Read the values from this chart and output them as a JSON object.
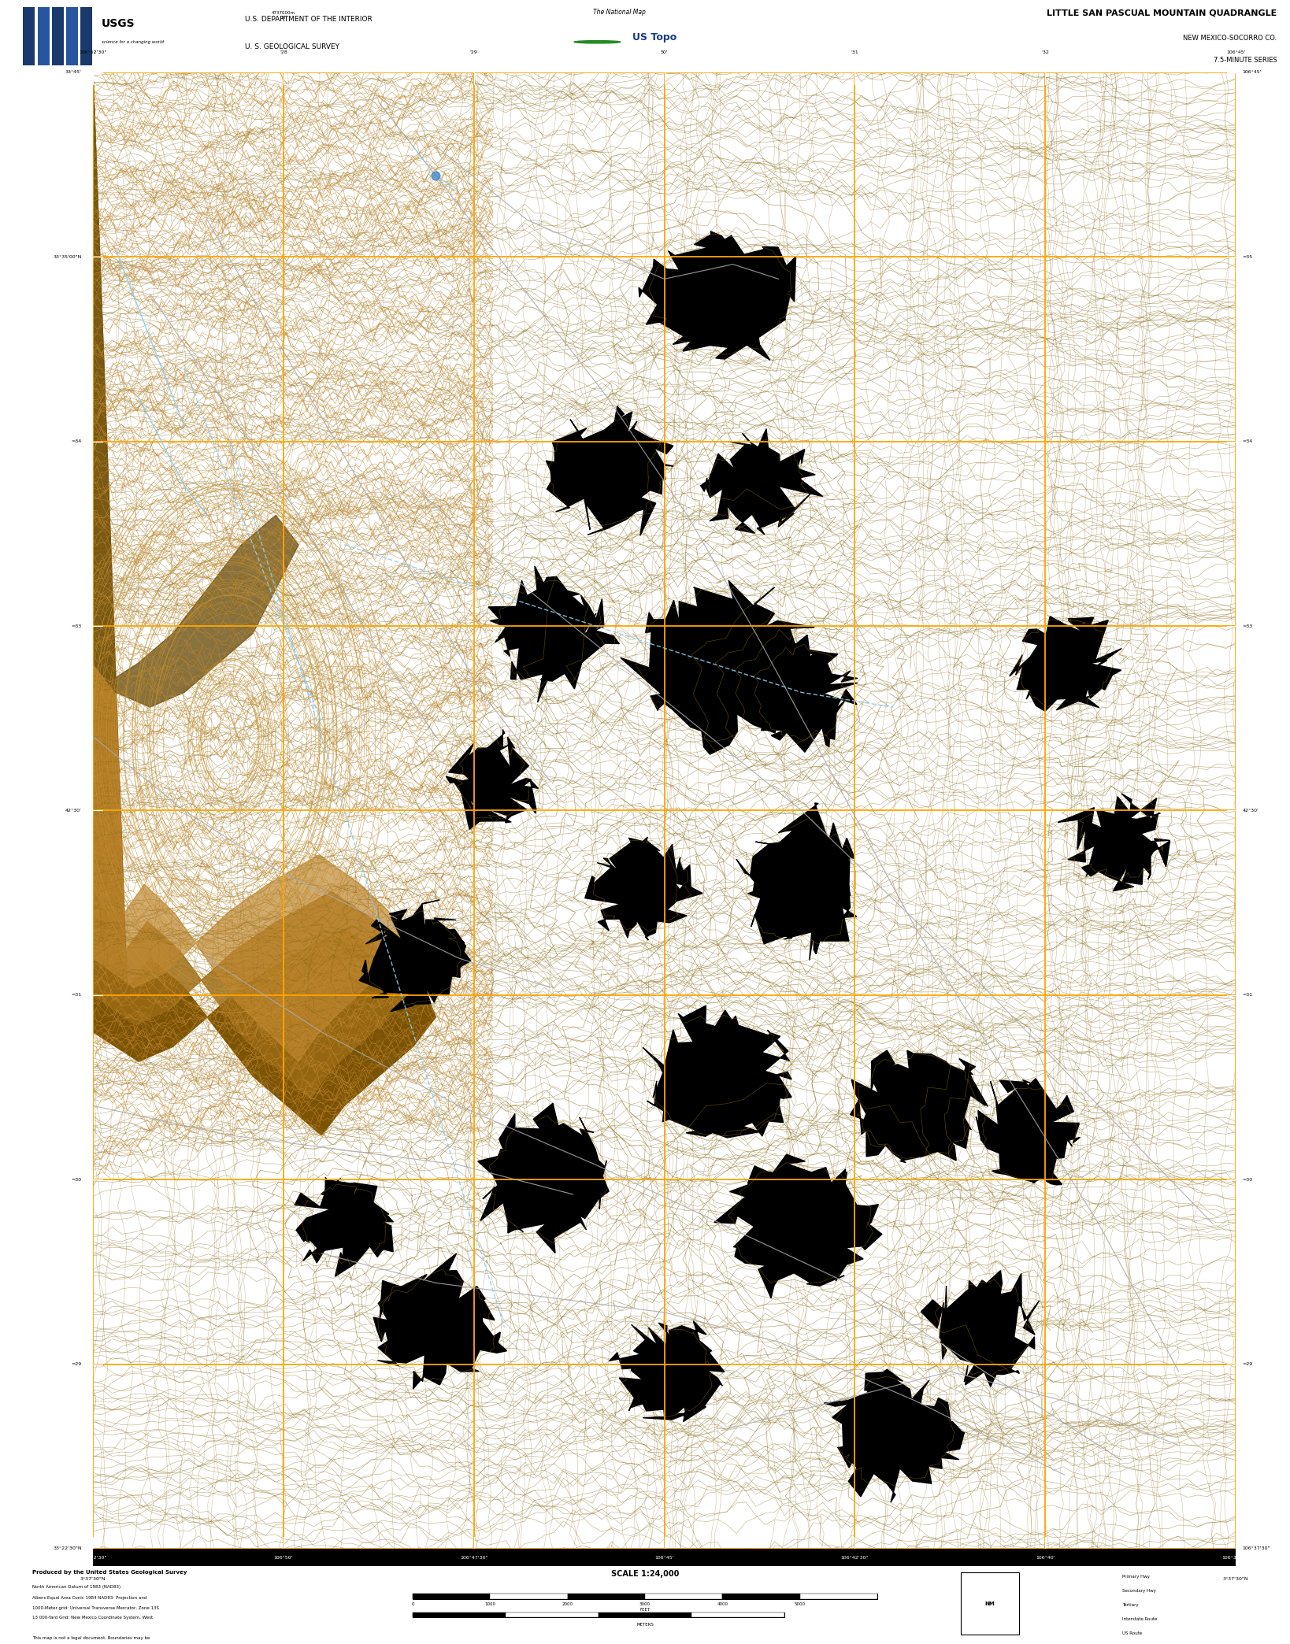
{
  "title": "LITTLE SAN PASCUAL MOUNTAIN QUADRANGLE",
  "subtitle1": "NEW MEXICO-SOCORRO CO.",
  "subtitle2": "7.5-MINUTE SERIES",
  "usgs_line1": "U.S. DEPARTMENT OF THE INTERIOR",
  "usgs_line2": "U. S. GEOLOGICAL SURVEY",
  "national_map_text": "The National Map",
  "ustopo_text": "☉ US Topo",
  "scale_text": "SCALE 1:24,000",
  "fig_width": 16.38,
  "fig_height": 20.88,
  "map_bg_color": "#000000",
  "page_bg_color": "#ffffff",
  "black_bar_color": "#000000",
  "grid_color": "#FFA500",
  "contour_color": "#8B6914",
  "contour_color_dark": "#5a3d00",
  "topo_brown1": "#8B6914",
  "topo_brown2": "#A07830",
  "topo_brown3": "#6B4F10",
  "road_color": "#aaaaaa",
  "stream_color": "#88CCEE",
  "label_color": "#ffffff",
  "map_l": 0.072,
  "map_r": 0.958,
  "map_t": 0.956,
  "map_b": 0.058,
  "header_t": 1.0,
  "header_b": 0.956,
  "footer_t": 0.058,
  "footer_b": 0.0
}
